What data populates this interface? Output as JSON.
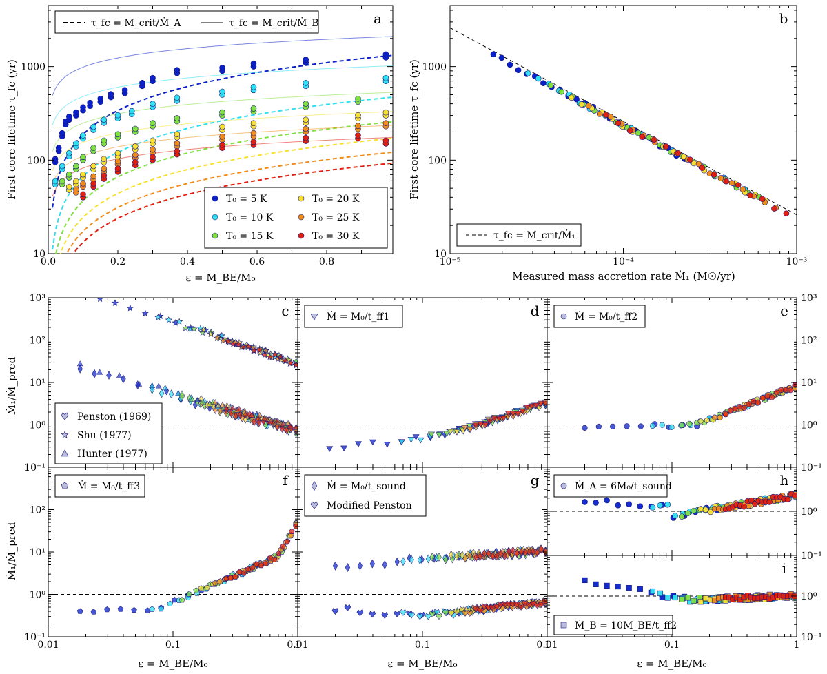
{
  "chart_data": [
    {
      "panel_id": "a",
      "type": "scatter",
      "panel_label": "a",
      "xlabel": "ε = M_BE/M₀",
      "ylabel": "First core lifetime τ_fc (yr)",
      "xscale": "linear",
      "yscale": "log",
      "xlim": [
        0,
        0.99
      ],
      "ylim": [
        10,
        4500
      ],
      "x_ticks": [
        "0.0",
        "0.2",
        "0.4",
        "0.6",
        "0.8"
      ],
      "y_ticks": [
        "10",
        "100",
        "1000"
      ],
      "line_legend": [
        "τ_fc = M_crit/Ṁ_A",
        "τ_fc = M_crit/Ṁ_B"
      ],
      "series": [
        {
          "name": "T₀ = 5 K",
          "color": "#0a20c8",
          "A": 185,
          "B": 2100,
          "x": [
            0.02,
            0.03,
            0.04,
            0.05,
            0.06,
            0.08,
            0.1,
            0.12,
            0.15,
            0.18,
            0.22,
            0.27,
            0.3,
            0.37,
            0.5,
            0.59,
            0.74,
            0.97
          ],
          "y": [
            95,
            125,
            180,
            240,
            270,
            300,
            340,
            380,
            420,
            470,
            520,
            620,
            700,
            850,
            900,
            1000,
            1100,
            1250
          ]
        },
        {
          "name": "T₀ = 10 K",
          "color": "#30e0f0",
          "A": 66,
          "B": 1020,
          "x": [
            0.02,
            0.04,
            0.06,
            0.08,
            0.1,
            0.13,
            0.16,
            0.2,
            0.24,
            0.3,
            0.37,
            0.5,
            0.59,
            0.74,
            0.97
          ],
          "y": [
            55,
            80,
            110,
            140,
            170,
            210,
            250,
            280,
            310,
            370,
            430,
            500,
            560,
            620,
            700
          ]
        },
        {
          "name": "T₀ = 15 K",
          "color": "#80e040",
          "A": 36,
          "B": 530,
          "x": [
            0.04,
            0.06,
            0.08,
            0.1,
            0.13,
            0.16,
            0.2,
            0.25,
            0.3,
            0.37,
            0.5,
            0.59,
            0.74,
            0.89
          ],
          "y": [
            55,
            65,
            80,
            100,
            125,
            150,
            175,
            200,
            230,
            260,
            300,
            330,
            370,
            420
          ]
        },
        {
          "name": "T₀ = 20 K",
          "color": "#f8e030",
          "A": 24,
          "B": 330,
          "x": [
            0.06,
            0.08,
            0.1,
            0.13,
            0.16,
            0.2,
            0.25,
            0.3,
            0.37,
            0.5,
            0.59,
            0.74,
            0.89,
            0.97
          ],
          "y": [
            48,
            55,
            65,
            80,
            95,
            110,
            130,
            150,
            175,
            210,
            230,
            250,
            280,
            300
          ]
        },
        {
          "name": "T₀ = 25 K",
          "color": "#f08c1a",
          "A": 17,
          "B": 235,
          "x": [
            0.08,
            0.1,
            0.13,
            0.16,
            0.2,
            0.25,
            0.3,
            0.37,
            0.5,
            0.59,
            0.74,
            0.89,
            0.97
          ],
          "y": [
            45,
            52,
            62,
            75,
            90,
            105,
            120,
            140,
            165,
            180,
            200,
            215,
            230
          ]
        },
        {
          "name": "T₀ = 30 K",
          "color": "#e02010",
          "A": 13,
          "B": 175,
          "x": [
            0.1,
            0.13,
            0.16,
            0.2,
            0.25,
            0.3,
            0.37,
            0.5,
            0.59,
            0.74,
            0.89,
            0.97
          ],
          "y": [
            40,
            52,
            63,
            75,
            88,
            100,
            115,
            135,
            145,
            160,
            170,
            150
          ]
        }
      ]
    },
    {
      "panel_id": "b",
      "type": "scatter",
      "panel_label": "b",
      "xlabel": "Measured mass accretion rate Ṁ₁ (M☉/yr)",
      "ylabel": "First core lifetime τ_fc (yr)",
      "xscale": "log",
      "yscale": "log",
      "xlim": [
        1e-05,
        0.001
      ],
      "ylim": [
        10,
        4500
      ],
      "x_ticks": [
        "10⁻⁵",
        "10⁻⁴",
        "10⁻³"
      ],
      "y_ticks": [
        "10",
        "100",
        "1000"
      ],
      "legend": [
        "τ_fc = M_crit/Ṁ₁"
      ],
      "series_colors": [
        "#0a20c8",
        "#30e0f0",
        "#80e040",
        "#f8e030",
        "#f08c1a",
        "#e02010"
      ]
    },
    {
      "panel_id": "c",
      "type": "scatter",
      "panel_label": "c",
      "ylabel": "Ṁ₁/Ṁ_pred",
      "xscale": "log",
      "yscale": "log",
      "xlim": [
        0.01,
        1
      ],
      "ylim": [
        0.1,
        1000
      ],
      "y_ticks": [
        "10⁻¹",
        "10⁰",
        "10¹",
        "10²",
        "10³"
      ],
      "legend": [
        "Penston (1969)",
        "Shu (1977)",
        "Hunter (1977)"
      ]
    },
    {
      "panel_id": "d",
      "type": "scatter",
      "panel_label": "d",
      "xscale": "log",
      "yscale": "log",
      "xlim": [
        0.01,
        1
      ],
      "ylim": [
        0.1,
        1000
      ],
      "legend": [
        "Ṁ = M₀/t_ff1"
      ]
    },
    {
      "panel_id": "e",
      "type": "scatter",
      "panel_label": "e",
      "xscale": "log",
      "yscale": "log",
      "xlim": [
        0.01,
        1
      ],
      "ylim": [
        0.1,
        1000
      ],
      "y_ticks": [
        "10⁻¹",
        "10⁰",
        "10¹",
        "10²",
        "10³"
      ],
      "legend": [
        "Ṁ = M₀/t_ff2"
      ]
    },
    {
      "panel_id": "f",
      "type": "scatter",
      "panel_label": "f",
      "xlabel": "ε = M_BE/M₀",
      "ylabel": "Ṁ₁/Ṁ_pred",
      "xscale": "log",
      "yscale": "log",
      "xlim": [
        0.01,
        1
      ],
      "ylim": [
        0.1,
        1000
      ],
      "x_ticks": [
        "0.01",
        "0.1",
        "1"
      ],
      "y_ticks": [
        "10⁻¹",
        "10⁰",
        "10¹",
        "10²"
      ],
      "legend": [
        "Ṁ = M₀/t_ff3"
      ]
    },
    {
      "panel_id": "g",
      "type": "scatter",
      "panel_label": "g",
      "xlabel": "ε = M_BE/M₀",
      "xscale": "log",
      "yscale": "log",
      "xlim": [
        0.01,
        1
      ],
      "ylim": [
        0.1,
        1000
      ],
      "x_ticks": [
        "0.01",
        "0.1",
        "1"
      ],
      "legend": [
        "Ṁ = M₀/t_sound",
        "Modified Penston"
      ]
    },
    {
      "panel_id": "h",
      "type": "scatter",
      "panel_label": "h",
      "xscale": "log",
      "yscale": "log",
      "xlim": [
        0.01,
        1
      ],
      "ylim": [
        0.1,
        10
      ],
      "y_ticks": [
        "10⁻¹",
        "10⁰"
      ],
      "legend": [
        "Ṁ_A = 6M₀/t_sound"
      ]
    },
    {
      "panel_id": "i",
      "type": "scatter",
      "panel_label": "i",
      "xlabel": "ε = M_BE/M₀",
      "xscale": "log",
      "yscale": "log",
      "xlim": [
        0.01,
        1
      ],
      "ylim": [
        0.1,
        10
      ],
      "x_ticks": [
        "0.01",
        "0.1",
        "1"
      ],
      "y_ticks": [
        "10⁻¹",
        "10⁰"
      ],
      "legend": [
        "Ṁ_B = 10M_BE/t_ff2"
      ]
    }
  ]
}
